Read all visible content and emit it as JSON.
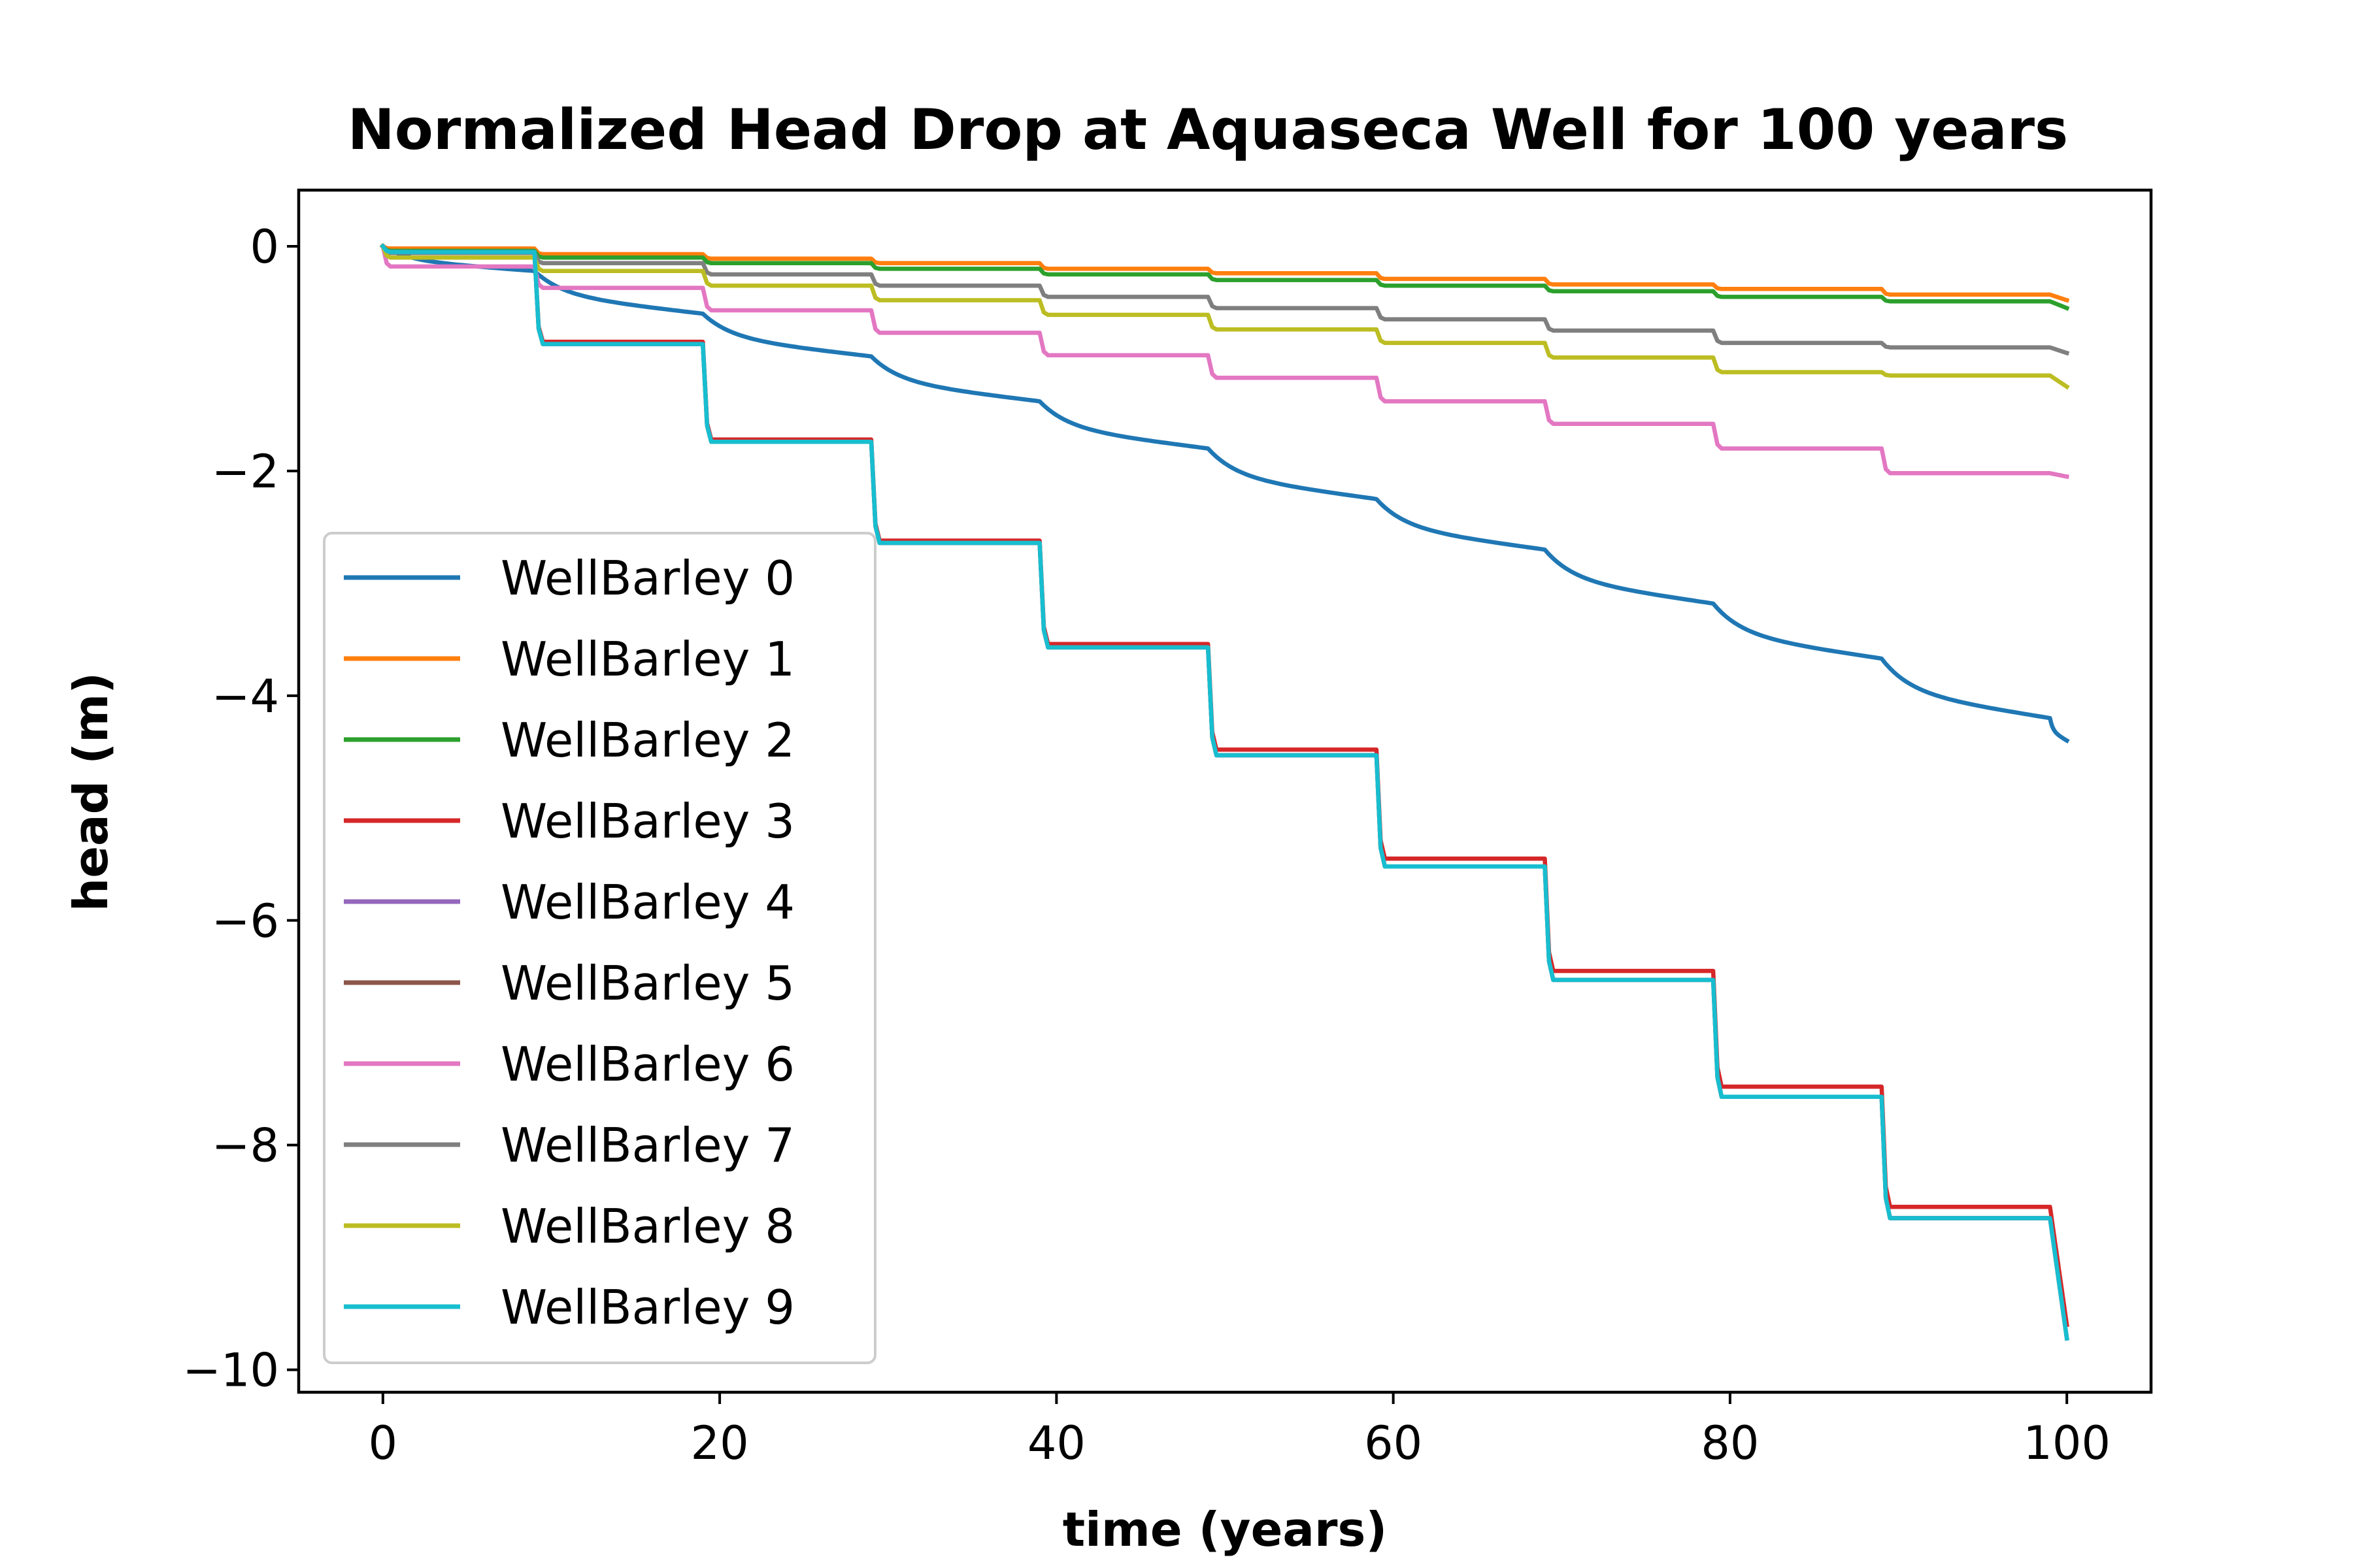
{
  "chart_data": {
    "type": "line",
    "title": "Normalized Head Drop at Aquaseca Well for 100 years",
    "xlabel": "time (years)",
    "ylabel": "head (m)",
    "xlim": [
      -5,
      105
    ],
    "ylim": [
      -10.2,
      0.5
    ],
    "xticks": [
      0,
      20,
      40,
      60,
      80,
      100
    ],
    "yticks": [
      0,
      -2,
      -4,
      -6,
      -8,
      -10
    ],
    "xtick_labels": [
      "0",
      "20",
      "40",
      "60",
      "80",
      "100"
    ],
    "ytick_labels": [
      "0",
      "−2",
      "−4",
      "−6",
      "−8",
      "−10"
    ],
    "grid": false,
    "legend_position": "lower-left",
    "pump_start_years": [
      9,
      19,
      29,
      39,
      49,
      59,
      69,
      79,
      89,
      99
    ],
    "series": [
      {
        "name": "WellBarley 0",
        "color": "#1f77b4",
        "kind": "smooth",
        "x": [
          0,
          9,
          19,
          29,
          39,
          49,
          59,
          69,
          79,
          89,
          99,
          100
        ],
        "y": [
          0,
          -0.22,
          -0.6,
          -0.98,
          -1.38,
          -1.8,
          -2.25,
          -2.7,
          -3.18,
          -3.67,
          -4.2,
          -4.4
        ]
      },
      {
        "name": "WellBarley 1",
        "color": "#ff7f0e",
        "kind": "step",
        "x": [
          0,
          9,
          19,
          29,
          39,
          49,
          59,
          69,
          79,
          89,
          99,
          100
        ],
        "y": [
          0,
          -0.02,
          -0.07,
          -0.11,
          -0.15,
          -0.2,
          -0.24,
          -0.29,
          -0.34,
          -0.38,
          -0.43,
          -0.48
        ]
      },
      {
        "name": "WellBarley 2",
        "color": "#2ca02c",
        "kind": "step",
        "x": [
          0,
          9,
          19,
          29,
          39,
          49,
          59,
          69,
          79,
          89,
          99,
          100
        ],
        "y": [
          0,
          -0.04,
          -0.1,
          -0.15,
          -0.2,
          -0.25,
          -0.3,
          -0.35,
          -0.4,
          -0.45,
          -0.49,
          -0.55
        ]
      },
      {
        "name": "WellBarley 3",
        "color": "#d62728",
        "kind": "step",
        "x": [
          0,
          9,
          19,
          29,
          39,
          49,
          59,
          69,
          79,
          89,
          99,
          100
        ],
        "y": [
          0,
          -0.05,
          -0.85,
          -1.72,
          -2.62,
          -3.54,
          -4.48,
          -5.45,
          -6.45,
          -7.48,
          -8.55,
          -9.6
        ]
      },
      {
        "name": "WellBarley 4",
        "color": "#9467bd",
        "kind": "step",
        "x": [
          0,
          9,
          19,
          29,
          39,
          49,
          59,
          69,
          79,
          89,
          99,
          100
        ],
        "y": [
          0,
          -0.05,
          -0.87,
          -1.74,
          -2.64,
          -3.57,
          -4.53,
          -5.52,
          -6.53,
          -7.57,
          -8.65,
          -9.72
        ]
      },
      {
        "name": "WellBarley 5",
        "color": "#8c564b",
        "kind": "step",
        "x": [
          0,
          9,
          19,
          29,
          39,
          49,
          59,
          69,
          79,
          89,
          99,
          100
        ],
        "y": [
          0,
          -0.05,
          -0.87,
          -1.74,
          -2.64,
          -3.57,
          -4.53,
          -5.52,
          -6.53,
          -7.57,
          -8.65,
          -9.72
        ]
      },
      {
        "name": "WellBarley 6",
        "color": "#e377c2",
        "kind": "step",
        "x": [
          0,
          9,
          19,
          29,
          39,
          49,
          59,
          69,
          79,
          89,
          99,
          100
        ],
        "y": [
          0,
          -0.18,
          -0.37,
          -0.57,
          -0.77,
          -0.97,
          -1.17,
          -1.38,
          -1.58,
          -1.8,
          -2.02,
          -2.05
        ]
      },
      {
        "name": "WellBarley 7",
        "color": "#7f7f7f",
        "kind": "step",
        "x": [
          0,
          9,
          19,
          29,
          39,
          49,
          59,
          69,
          79,
          89,
          99,
          100
        ],
        "y": [
          0,
          -0.06,
          -0.15,
          -0.25,
          -0.35,
          -0.45,
          -0.55,
          -0.65,
          -0.75,
          -0.86,
          -0.9,
          -0.95
        ]
      },
      {
        "name": "WellBarley 8",
        "color": "#bcbd22",
        "kind": "step",
        "x": [
          0,
          9,
          19,
          29,
          39,
          49,
          59,
          69,
          79,
          89,
          99,
          100
        ],
        "y": [
          0,
          -0.1,
          -0.22,
          -0.35,
          -0.48,
          -0.61,
          -0.74,
          -0.86,
          -0.99,
          -1.12,
          -1.15,
          -1.25
        ]
      },
      {
        "name": "WellBarley 9",
        "color": "#17becf",
        "kind": "step",
        "x": [
          0,
          9,
          19,
          29,
          39,
          49,
          59,
          69,
          79,
          89,
          99,
          100
        ],
        "y": [
          0,
          -0.05,
          -0.87,
          -1.74,
          -2.64,
          -3.57,
          -4.53,
          -5.52,
          -6.53,
          -7.57,
          -8.65,
          -9.72
        ]
      }
    ]
  }
}
